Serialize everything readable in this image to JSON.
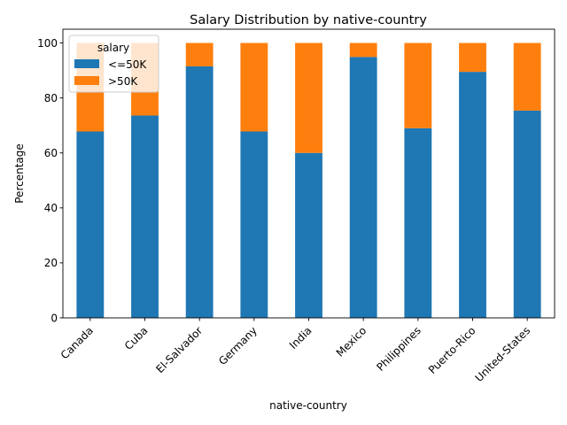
{
  "chart_data": {
    "type": "bar",
    "stacked": true,
    "title": "Salary Distribution by native-country",
    "xlabel": "native-country",
    "ylabel": "Percentage",
    "ylim": [
      0,
      105
    ],
    "yticks": [
      0,
      20,
      40,
      60,
      80,
      100
    ],
    "grid": false,
    "categories": [
      "Canada",
      "Cuba",
      "El-Salvador",
      "Germany",
      "India",
      "Mexico",
      "Philippines",
      "Puerto-Rico",
      "United-States"
    ],
    "legend": {
      "title": "salary",
      "placement": "top-left"
    },
    "series": [
      {
        "name": "<=50K",
        "color": "#1f77b4",
        "values": [
          67.8,
          73.6,
          91.5,
          67.8,
          60.0,
          94.9,
          69.0,
          89.5,
          75.4
        ]
      },
      {
        "name": ">50K",
        "color": "#ff7f0e",
        "values": [
          32.2,
          26.4,
          8.5,
          32.2,
          40.0,
          5.1,
          31.0,
          10.5,
          24.6
        ]
      }
    ]
  }
}
